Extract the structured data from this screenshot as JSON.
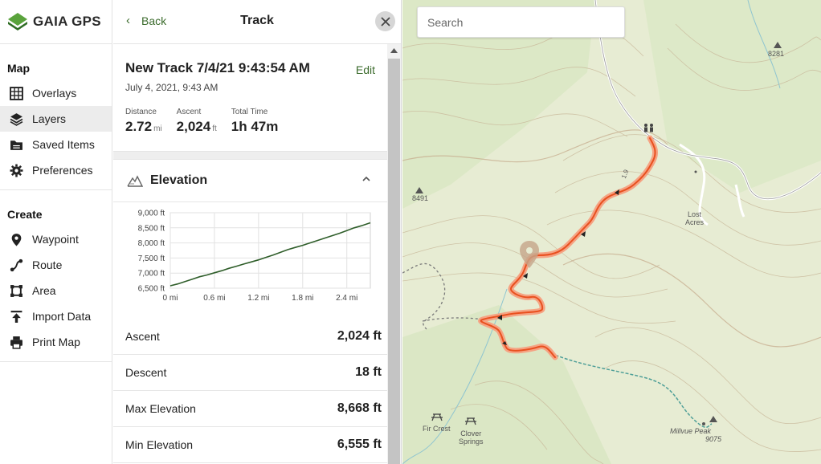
{
  "app": {
    "brand": "GAIA GPS",
    "brand_color": "#3a7d2c"
  },
  "nav": {
    "map_heading": "Map",
    "map_items": [
      {
        "label": "Overlays",
        "icon": "grid-icon"
      },
      {
        "label": "Layers",
        "icon": "layers-icon",
        "active": true
      },
      {
        "label": "Saved Items",
        "icon": "folder-icon"
      },
      {
        "label": "Preferences",
        "icon": "gear-icon"
      }
    ],
    "create_heading": "Create",
    "create_items": [
      {
        "label": "Waypoint",
        "icon": "pin-icon"
      },
      {
        "label": "Route",
        "icon": "route-icon"
      },
      {
        "label": "Area",
        "icon": "area-icon"
      },
      {
        "label": "Import Data",
        "icon": "upload-icon"
      },
      {
        "label": "Print Map",
        "icon": "printer-icon"
      }
    ]
  },
  "panel": {
    "back_label": "Back",
    "title": "Track",
    "track_name": "New Track 7/4/21 9:43:54 AM",
    "track_date": "July 4, 2021, 9:43 AM",
    "edit_label": "Edit",
    "stats": {
      "distance": {
        "label": "Distance",
        "value": "2.72",
        "unit": "mi"
      },
      "ascent": {
        "label": "Ascent",
        "value": "2,024",
        "unit": "ft"
      },
      "total_time": {
        "label": "Total Time",
        "value": "1h 47m"
      }
    },
    "elevation_title": "Elevation",
    "details": [
      {
        "label": "Ascent",
        "value": "2,024 ft"
      },
      {
        "label": "Descent",
        "value": "18 ft"
      },
      {
        "label": "Max Elevation",
        "value": "8,668 ft"
      },
      {
        "label": "Min Elevation",
        "value": "6,555 ft"
      }
    ]
  },
  "chart_data": {
    "type": "line",
    "title": "",
    "xlabel": "",
    "ylabel": "",
    "x_ticks": [
      "0 mi",
      "0.6 mi",
      "1.2 mi",
      "1.8 mi",
      "2.4 mi"
    ],
    "y_ticks": [
      "9,000 ft",
      "8,500 ft",
      "8,000 ft",
      "7,500 ft",
      "7,000 ft",
      "6,500 ft"
    ],
    "xlim": [
      0,
      2.72
    ],
    "ylim": [
      6500,
      9000
    ],
    "grid": true,
    "series": [
      {
        "color": "#2f5e2a",
        "x": [
          0,
          0.1,
          0.2,
          0.3,
          0.4,
          0.5,
          0.6,
          0.7,
          0.8,
          0.9,
          1.0,
          1.1,
          1.2,
          1.3,
          1.4,
          1.5,
          1.6,
          1.7,
          1.8,
          1.9,
          2.0,
          2.1,
          2.2,
          2.3,
          2.4,
          2.5,
          2.6,
          2.72
        ],
        "y": [
          6580,
          6640,
          6720,
          6800,
          6880,
          6940,
          7010,
          7080,
          7160,
          7230,
          7300,
          7370,
          7440,
          7520,
          7600,
          7690,
          7780,
          7850,
          7920,
          8000,
          8080,
          8160,
          8240,
          8320,
          8410,
          8500,
          8570,
          8668
        ]
      }
    ]
  },
  "map": {
    "search_placeholder": "Search",
    "labels": {
      "peak_8281": "8281",
      "peak_8491": "8491",
      "lost_acres": "Lost\nAcres",
      "fir_crest": "Fir Crest",
      "clover_springs": "Clover\nSprings",
      "millvue_peak": "Millvue Peak",
      "millvue_elev": "9075",
      "trail_num": "1.9"
    },
    "track_color": "#f26a3b"
  }
}
